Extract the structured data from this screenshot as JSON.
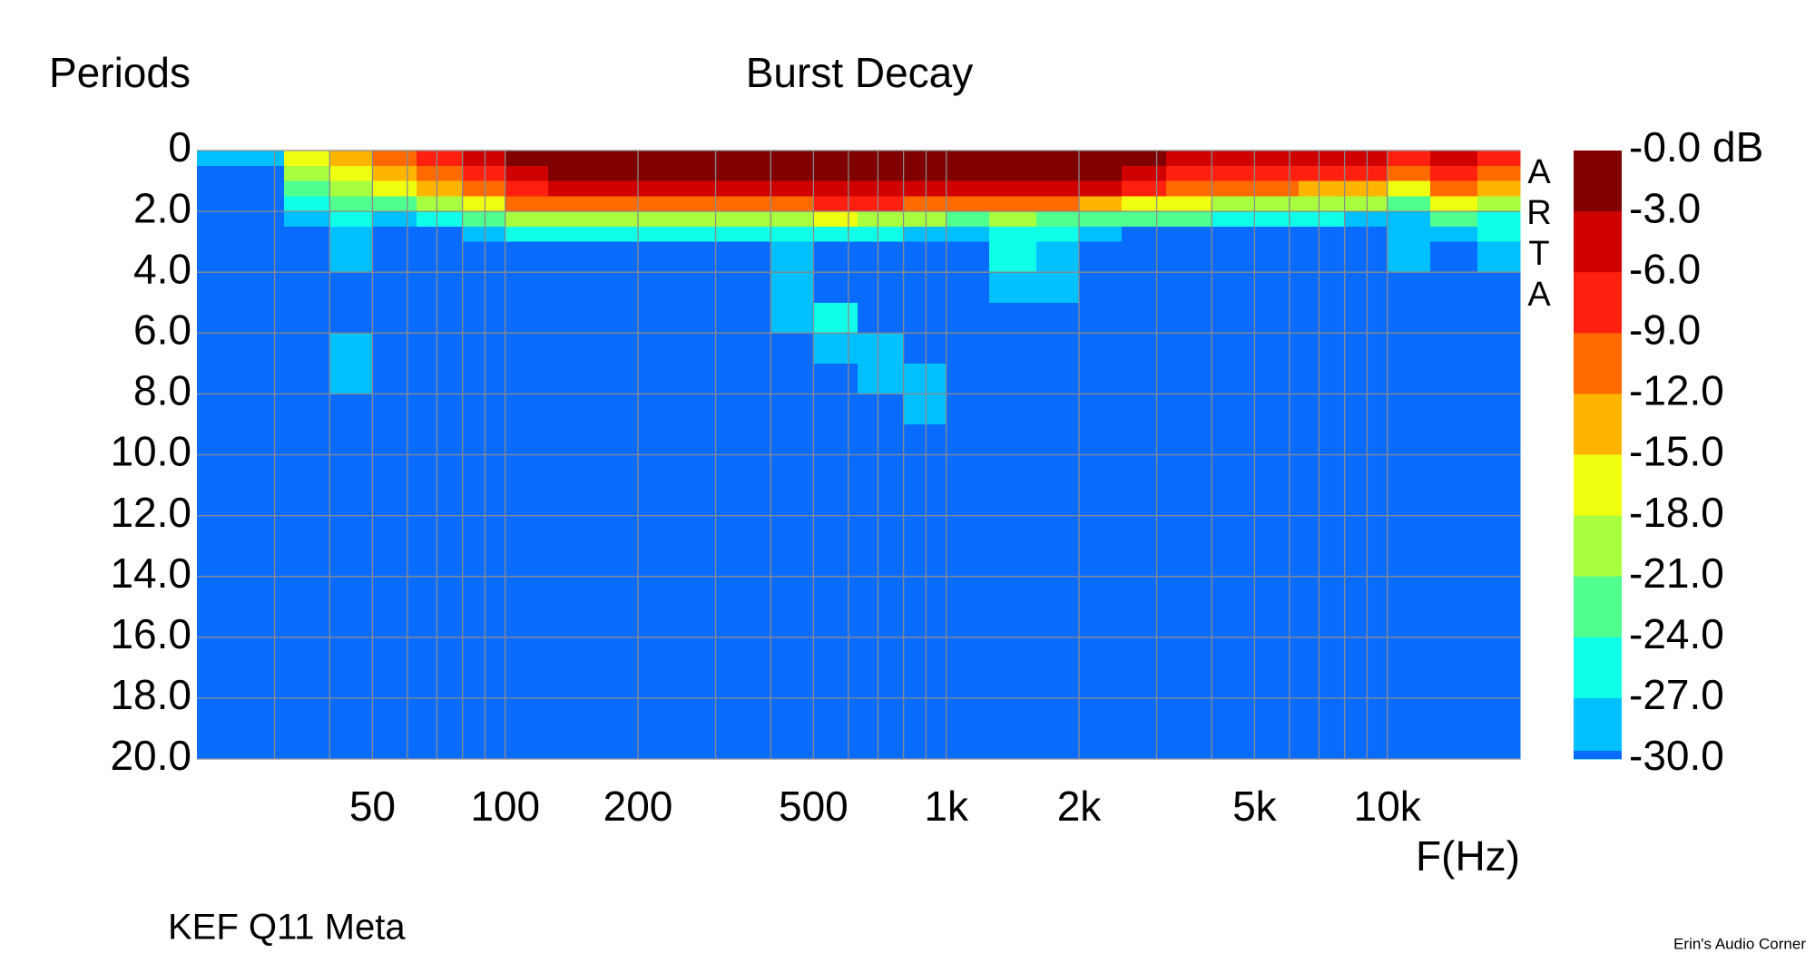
{
  "chart_data": {
    "type": "heatmap",
    "title": "Burst Decay",
    "y_label": "Periods",
    "x_label": "F(Hz)",
    "subtitle": "KEF Q11 Meta",
    "credit": "Erin's Audio Corner",
    "watermark": "ARTA",
    "x_log": true,
    "xlim": [
      20,
      20000
    ],
    "xticks": [
      50,
      100,
      200,
      500,
      {
        "value": 1000,
        "label": "1k"
      },
      {
        "value": 2000,
        "label": "2k"
      },
      {
        "value": 5000,
        "label": "5k"
      },
      {
        "value": 10000,
        "label": "10k"
      }
    ],
    "xminor": [
      30,
      40,
      60,
      70,
      80,
      90,
      300,
      400,
      600,
      700,
      800,
      900,
      3000,
      4000,
      6000,
      7000,
      8000,
      9000
    ],
    "ylim": [
      0,
      20
    ],
    "y_reversed": true,
    "yticks": [
      0,
      {
        "value": 2,
        "label": "2.0"
      },
      {
        "value": 4,
        "label": "4.0"
      },
      {
        "value": 6,
        "label": "6.0"
      },
      {
        "value": 8,
        "label": "8.0"
      },
      {
        "value": 10,
        "label": "10.0"
      },
      {
        "value": 12,
        "label": "12.0"
      },
      {
        "value": 14,
        "label": "14.0"
      },
      {
        "value": 16,
        "label": "16.0"
      },
      {
        "value": 18,
        "label": "18.0"
      },
      {
        "value": 20,
        "label": "20.0"
      }
    ],
    "grid": true,
    "x_edges": [
      20,
      25,
      31.5,
      40,
      50,
      63,
      80,
      100,
      125,
      160,
      200,
      250,
      315,
      400,
      500,
      630,
      800,
      1000,
      1250,
      1600,
      2000,
      2500,
      3150,
      4000,
      5000,
      6300,
      8000,
      10000,
      12500,
      16000,
      20000
    ],
    "y_edges": [
      0,
      0.5,
      1,
      1.5,
      2,
      2.5,
      3,
      4,
      5,
      6,
      7,
      8,
      9,
      20
    ],
    "z": [
      [
        -28,
        -35,
        -35,
        -35,
        -35,
        -35,
        -35,
        -35,
        -35,
        -35,
        -35,
        -35,
        -35
      ],
      [
        -27,
        -35,
        -35,
        -35,
        -35,
        -35,
        -35,
        -35,
        -35,
        -35,
        -35,
        -35,
        -35
      ],
      [
        -17,
        -20,
        -23,
        -26,
        -28,
        -35,
        -35,
        -35,
        -35,
        -35,
        -35,
        -35,
        -35
      ],
      [
        -13,
        -16,
        -19,
        -23,
        -25,
        -27,
        -28,
        -35,
        -35,
        -28,
        -28,
        -35,
        -35
      ],
      [
        -10,
        -12,
        -17,
        -22,
        -27,
        -35,
        -35,
        -35,
        -35,
        -35,
        -35,
        -35,
        -35
      ],
      [
        -6,
        -9,
        -14,
        -20,
        -26,
        -35,
        -35,
        -35,
        -35,
        -35,
        -35,
        -35,
        -35
      ],
      [
        -4,
        -7,
        -11,
        -17,
        -23,
        -28,
        -35,
        -35,
        -35,
        -35,
        -35,
        -35,
        -35
      ],
      [
        -2,
        -3,
        -6,
        -11,
        -19,
        -26,
        -35,
        -35,
        -35,
        -35,
        -35,
        -35,
        -35
      ],
      [
        -1,
        -2,
        -5,
        -10,
        -18,
        -25,
        -35,
        -35,
        -35,
        -35,
        -35,
        -35,
        -35
      ],
      [
        -1,
        -2,
        -5,
        -10,
        -18,
        -25,
        -35,
        -35,
        -35,
        -35,
        -35,
        -35,
        -35
      ],
      [
        -1,
        -2,
        -5,
        -10,
        -18,
        -25,
        -35,
        -35,
        -35,
        -35,
        -35,
        -35,
        -35
      ],
      [
        -1,
        -2,
        -5,
        -10,
        -19,
        -26,
        -35,
        -35,
        -35,
        -35,
        -35,
        -35,
        -35
      ],
      [
        -1,
        -2,
        -5,
        -11,
        -20,
        -26,
        -35,
        -35,
        -35,
        -35,
        -35,
        -35,
        -35
      ],
      [
        -1,
        -2,
        -4,
        -9,
        -18,
        -25,
        -27,
        -28,
        -28,
        -35,
        -35,
        -35,
        -35
      ],
      [
        -1,
        -2,
        -4,
        -8,
        -17,
        -24,
        -35,
        -35,
        -25,
        -28,
        -35,
        -35,
        -35
      ],
      [
        -1,
        -2,
        -4,
        -8,
        -18,
        -25,
        -35,
        -35,
        -35,
        -28,
        -28,
        -35,
        -35
      ],
      [
        -1,
        -2,
        -5,
        -10,
        -20,
        -27,
        -35,
        -35,
        -35,
        -35,
        -28,
        -28,
        -35
      ],
      [
        -1,
        -2,
        -5,
        -11,
        -21,
        -27,
        -35,
        -35,
        -35,
        -35,
        -35,
        -35,
        -35
      ],
      [
        -1,
        -2,
        -5,
        -11,
        -20,
        -24,
        -25,
        -27,
        -35,
        -35,
        -35,
        -35,
        -35
      ],
      [
        -1,
        -2,
        -5,
        -11,
        -21,
        -25,
        -27,
        -28,
        -35,
        -35,
        -35,
        -35,
        -35
      ],
      [
        -1,
        -2,
        -5,
        -12,
        -21,
        -27,
        -35,
        -35,
        -35,
        -35,
        -35,
        -35,
        -35
      ],
      [
        -2,
        -4,
        -8,
        -15,
        -23,
        -35,
        -35,
        -35,
        -35,
        -35,
        -35,
        -35,
        -35
      ],
      [
        -4,
        -6,
        -10,
        -17,
        -23,
        -35,
        -35,
        -35,
        -35,
        -35,
        -35,
        -35,
        -35
      ],
      [
        -5,
        -7,
        -11,
        -18,
        -25,
        -35,
        -35,
        -35,
        -35,
        -35,
        -35,
        -35,
        -35
      ],
      [
        -5,
        -7,
        -11,
        -18,
        -25,
        -35,
        -35,
        -35,
        -35,
        -35,
        -35,
        -35,
        -35
      ],
      [
        -5,
        -8,
        -12,
        -18,
        -26,
        -35,
        -35,
        -35,
        -35,
        -35,
        -35,
        -35,
        -35
      ],
      [
        -5,
        -8,
        -13,
        -20,
        -27,
        -35,
        -35,
        -35,
        -35,
        -35,
        -35,
        -35,
        -35
      ],
      [
        -7,
        -10,
        -16,
        -22,
        -27,
        -28,
        -28,
        -35,
        -35,
        -35,
        -35,
        -35,
        -35
      ],
      [
        -5,
        -7,
        -10,
        -16,
        -22,
        -27,
        -35,
        -35,
        -35,
        -35,
        -35,
        -35,
        -35
      ],
      [
        -6,
        -9,
        -13,
        -19,
        -24,
        -26,
        -28,
        -35,
        -35,
        -35,
        -35,
        -35,
        -35
      ]
    ],
    "colorbar": {
      "ticks": [
        {
          "value": 0,
          "label": "-0.0 dB"
        },
        {
          "value": -3,
          "label": "-3.0"
        },
        {
          "value": -6,
          "label": "-6.0"
        },
        {
          "value": -9,
          "label": "-9.0"
        },
        {
          "value": -12,
          "label": "-12.0"
        },
        {
          "value": -15,
          "label": "-15.0"
        },
        {
          "value": -18,
          "label": "-18.0"
        },
        {
          "value": -21,
          "label": "-21.0"
        },
        {
          "value": -24,
          "label": "-24.0"
        },
        {
          "value": -27,
          "label": "-27.0"
        },
        {
          "value": -30,
          "label": "-30.0"
        }
      ],
      "colors": [
        "#800000",
        "#d00000",
        "#ff2010",
        "#ff6a00",
        "#ffb400",
        "#f0ff10",
        "#a8ff40",
        "#50ff90",
        "#10ffe8",
        "#00c0ff",
        "#0a6cff"
      ]
    }
  }
}
